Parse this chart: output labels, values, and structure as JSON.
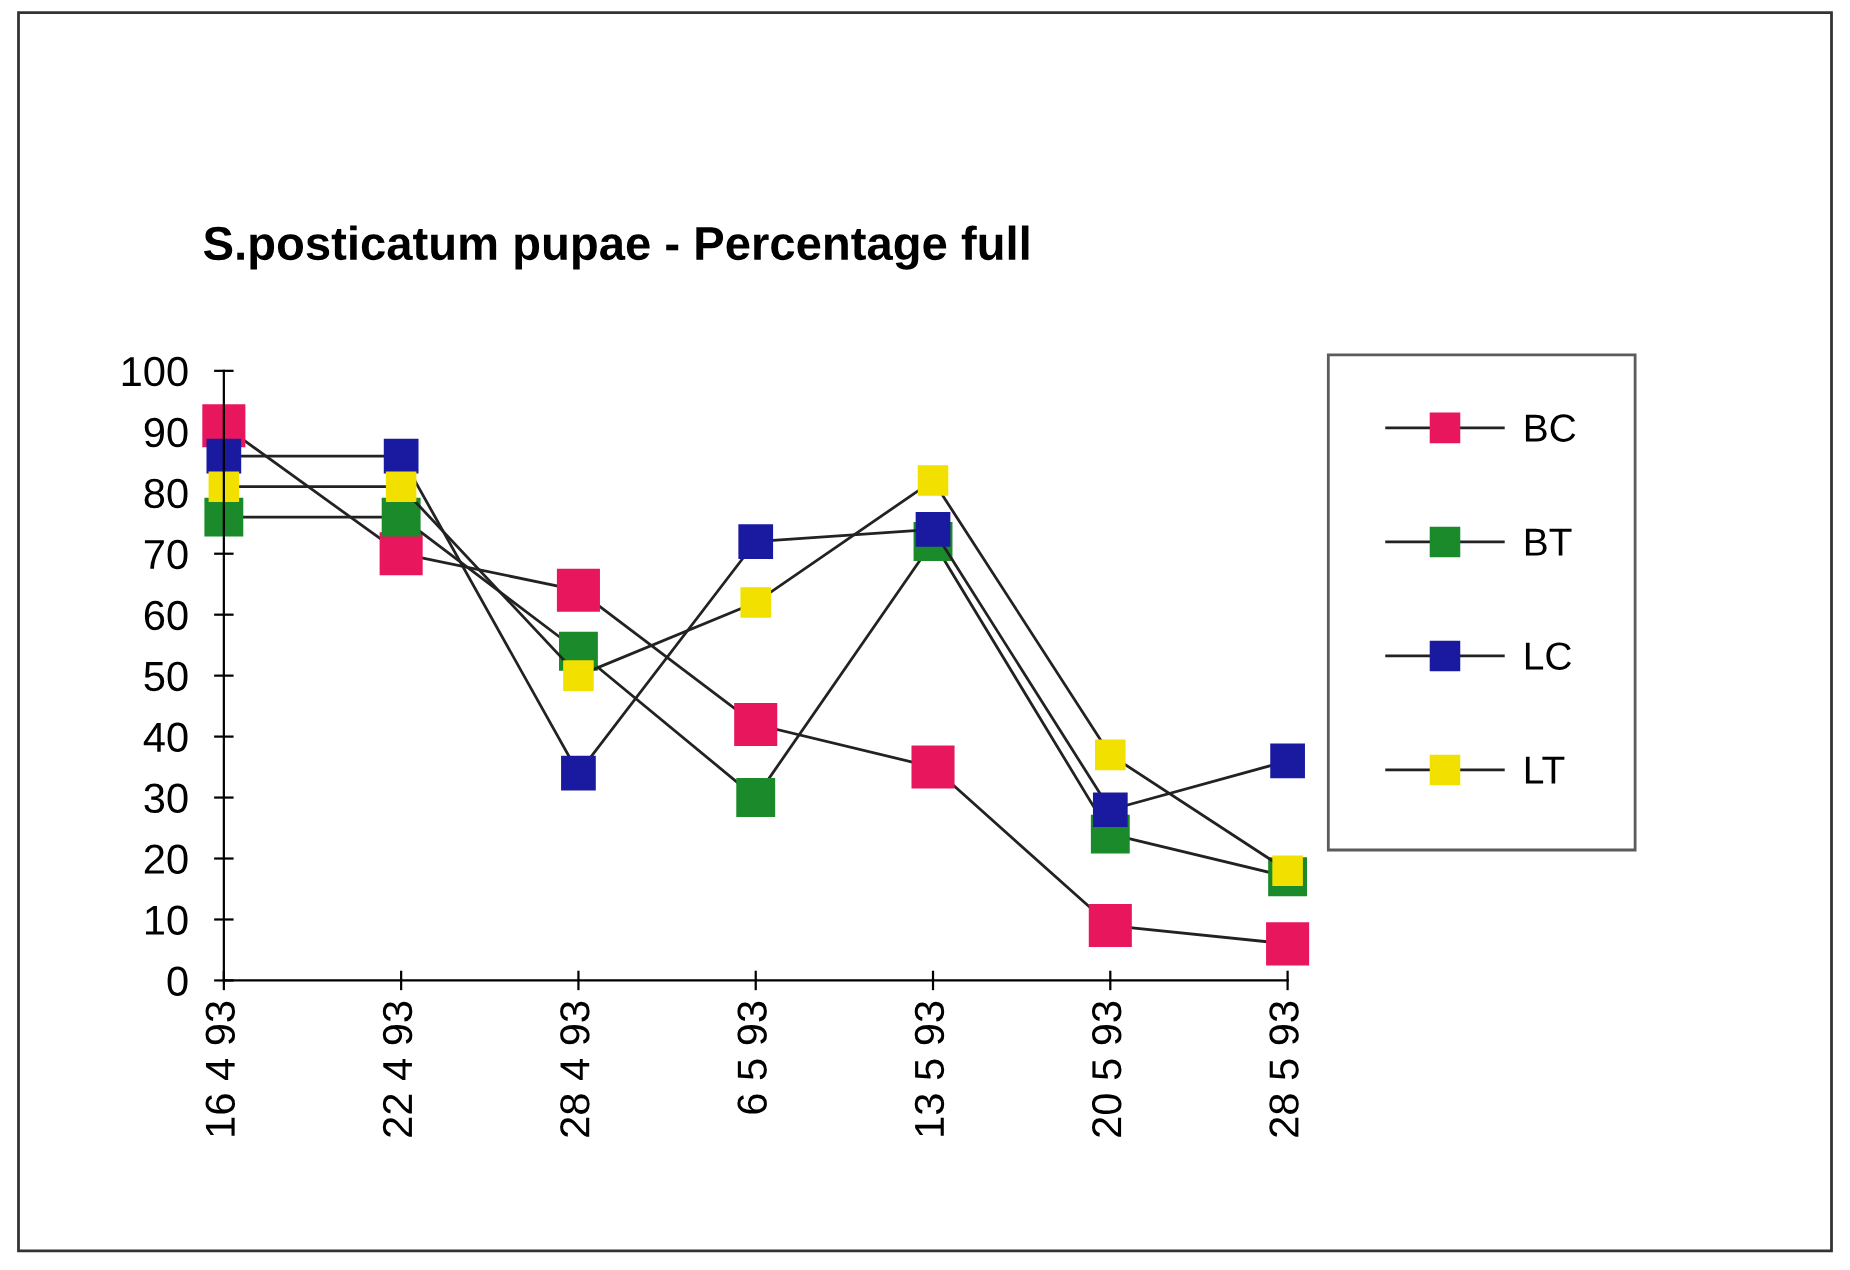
{
  "chart_data": {
    "type": "line",
    "title": "S.posticatum pupae - Percentage full",
    "categories": [
      "16 4 93",
      "22 4 93",
      "28 4 93",
      "6 5 93",
      "13 5 93",
      "20 5 93",
      "28 5 93"
    ],
    "series": [
      {
        "name": "BC",
        "color": "#e8175d",
        "values": [
          91,
          70,
          64,
          42,
          35,
          9,
          6
        ]
      },
      {
        "name": "BT",
        "color": "#1a8a2a",
        "values": [
          76,
          76,
          54,
          30,
          72,
          24,
          17
        ]
      },
      {
        "name": "LC",
        "color": "#1a1aa0",
        "values": [
          86,
          86,
          34,
          72,
          74,
          28,
          36
        ]
      },
      {
        "name": "LT",
        "color": "#f2e000",
        "values": [
          81,
          81,
          50,
          62,
          82,
          37,
          18
        ]
      }
    ],
    "ylim": [
      0,
      100
    ],
    "yticks": [
      0,
      10,
      20,
      30,
      40,
      50,
      60,
      70,
      80,
      90,
      100
    ],
    "marker": "square",
    "line_style": "solid",
    "grid": false,
    "legend": "right"
  }
}
